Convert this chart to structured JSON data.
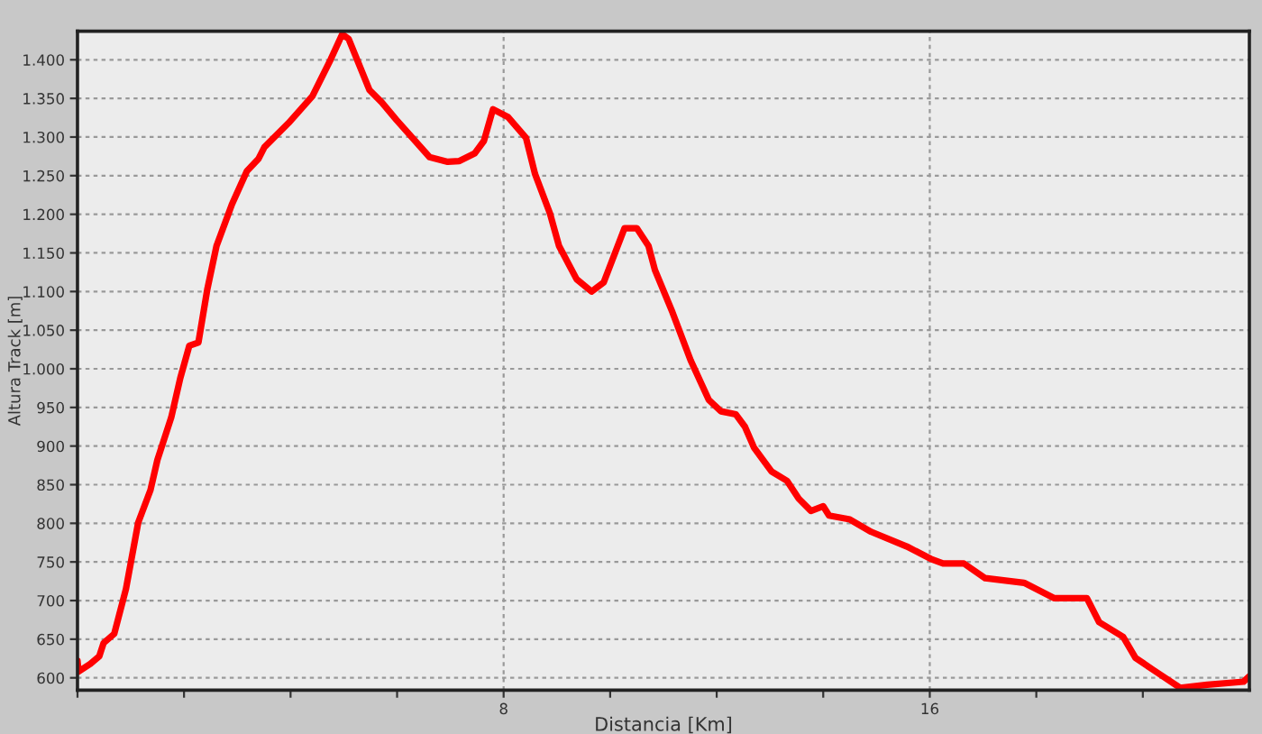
{
  "chart_data": {
    "type": "line",
    "xlabel": "Distancia [Km]",
    "ylabel": "Altura Track [m]",
    "x": [
      0,
      0.02,
      0.24,
      0.41,
      0.49,
      0.69,
      0.91,
      1.14,
      1.37,
      1.5,
      1.76,
      1.93,
      2.1,
      2.27,
      2.44,
      2.61,
      2.9,
      3.18,
      3.4,
      3.51,
      3.96,
      4.41,
      4.75,
      4.97,
      5.09,
      5.48,
      5.71,
      5.99,
      6.61,
      6.95,
      7.17,
      7.46,
      7.63,
      7.8,
      8.08,
      8.42,
      8.59,
      8.87,
      9.04,
      9.37,
      9.65,
      9.88,
      10.27,
      10.5,
      10.72,
      10.84,
      11.17,
      11.51,
      11.85,
      12.08,
      12.36,
      12.53,
      12.7,
      13.03,
      13.32,
      13.54,
      13.77,
      14.0,
      14.11,
      14.5,
      14.9,
      15.57,
      16.02,
      16.25,
      16.64,
      17.04,
      17.77,
      18.34,
      18.95,
      19.18,
      19.63,
      19.86,
      20.2,
      20.7,
      21.21,
      21.89,
      22.0
    ],
    "series": [
      {
        "color": "#ff0000",
        "values": [
          622,
          608,
          618,
          628,
          645,
          657,
          715,
          801,
          843,
          882,
          937,
          988,
          1030,
          1034,
          1104,
          1159,
          1213,
          1256,
          1272,
          1287,
          1318,
          1353,
          1400,
          1433,
          1427,
          1361,
          1345,
          1322,
          1274,
          1268,
          1269,
          1279,
          1295,
          1336,
          1326,
          1299,
          1252,
          1201,
          1159,
          1116,
          1100,
          1112,
          1182,
          1182,
          1159,
          1128,
          1073,
          1011,
          960,
          945,
          941,
          925,
          898,
          867,
          855,
          832,
          816,
          822,
          810,
          805,
          789,
          770,
          754,
          748,
          748,
          729,
          723,
          703,
          703,
          672,
          653,
          626,
          610,
          587,
          591,
          595,
          602
        ]
      }
    ],
    "xlim": [
      0,
      22
    ],
    "xticks": [
      {
        "value": 0,
        "label": null
      },
      {
        "value": 2,
        "label": null
      },
      {
        "value": 4,
        "label": null
      },
      {
        "value": 6,
        "label": null
      },
      8,
      {
        "value": 10,
        "label": null
      },
      {
        "value": 12,
        "label": null
      },
      {
        "value": 14,
        "label": null
      },
      16,
      {
        "value": 18,
        "label": null
      },
      {
        "value": 20,
        "label": null
      }
    ],
    "ylim": [
      584,
      1437
    ],
    "yticks": [
      {
        "value": 600,
        "label": "600"
      },
      {
        "value": 650,
        "label": "650"
      },
      {
        "value": 700,
        "label": "700"
      },
      {
        "value": 750,
        "label": "750"
      },
      {
        "value": 800,
        "label": "800"
      },
      {
        "value": 850,
        "label": "850"
      },
      {
        "value": 900,
        "label": "900"
      },
      {
        "value": 950,
        "label": "950"
      },
      {
        "value": 1000,
        "label": "1.000"
      },
      {
        "value": 1050,
        "label": "1.050"
      },
      {
        "value": 1100,
        "label": "1.100"
      },
      {
        "value": 1150,
        "label": "1.150"
      },
      {
        "value": 1200,
        "label": "1.200"
      },
      {
        "value": 1250,
        "label": "1.250"
      },
      {
        "value": 1300,
        "label": "1.300"
      },
      {
        "value": 1350,
        "label": "1.350"
      },
      {
        "value": 1400,
        "label": "1.400"
      }
    ],
    "grid": true,
    "line_style": "solid",
    "marker": "none"
  }
}
